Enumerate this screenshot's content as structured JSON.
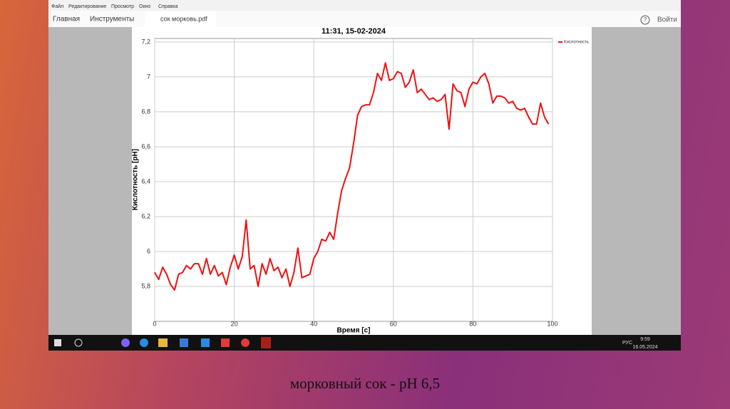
{
  "menu": [
    "Файл",
    "Редактирование",
    "Просмотр",
    "Окно",
    "Справка"
  ],
  "toolbar": {
    "home": "Главная",
    "tools": "Инструменты",
    "tab": "сок морковь.pdf",
    "help": "?",
    "login": "Войти"
  },
  "taskbar": {
    "lang": "РУС",
    "time": "9:59",
    "date": "16.05.2024"
  },
  "caption": "морковный сок - рН 6,5",
  "chart_data": {
    "type": "line",
    "title": "11:31, 15-02-2024",
    "x_label": "Время [с]",
    "y_label": "Кислотность [pH]",
    "x": [
      0,
      1,
      2,
      3,
      4,
      5,
      6,
      7,
      8,
      9,
      10,
      11,
      12,
      13,
      14,
      15,
      16,
      17,
      18,
      19,
      20,
      21,
      22,
      23,
      24,
      25,
      26,
      27,
      28,
      29,
      30,
      31,
      32,
      33,
      34,
      35,
      36,
      37,
      38,
      39,
      40,
      41,
      42,
      43,
      44,
      45,
      46,
      47,
      48,
      49,
      50,
      51,
      52,
      53,
      54,
      55,
      56,
      57,
      58,
      59,
      60,
      61,
      62,
      63,
      64,
      65,
      66,
      67,
      68,
      69,
      70,
      71,
      72,
      73,
      74,
      75,
      76,
      77,
      78,
      79,
      80,
      81,
      82,
      83,
      84,
      85,
      86,
      87,
      88,
      89,
      90,
      91,
      92,
      93,
      94,
      95,
      96,
      97,
      98,
      99
    ],
    "series": [
      {
        "name": "Кислотность",
        "color": "#ee1111",
        "values": [
          5.88,
          5.84,
          5.91,
          5.87,
          5.81,
          5.78,
          5.87,
          5.88,
          5.92,
          5.9,
          5.93,
          5.93,
          5.87,
          5.96,
          5.87,
          5.92,
          5.86,
          5.88,
          5.81,
          5.91,
          5.98,
          5.9,
          5.97,
          6.18,
          5.9,
          5.92,
          5.8,
          5.93,
          5.87,
          5.96,
          5.89,
          5.91,
          5.85,
          5.9,
          5.8,
          5.88,
          6.02,
          5.85,
          5.86,
          5.87,
          5.96,
          6.0,
          6.07,
          6.06,
          6.11,
          6.07,
          6.22,
          6.35,
          6.42,
          6.48,
          6.62,
          6.78,
          6.83,
          6.84,
          6.84,
          6.91,
          7.02,
          6.98,
          7.08,
          6.98,
          6.99,
          7.03,
          7.02,
          6.94,
          6.97,
          7.04,
          6.91,
          6.93,
          6.9,
          6.87,
          6.88,
          6.86,
          6.87,
          6.9,
          6.7,
          6.96,
          6.92,
          6.91,
          6.83,
          6.93,
          6.97,
          6.96,
          7.0,
          7.02,
          6.96,
          6.85,
          6.89,
          6.89,
          6.88,
          6.85,
          6.86,
          6.82,
          6.81,
          6.82,
          6.77,
          6.73,
          6.73,
          6.85,
          6.77,
          6.73
        ]
      }
    ],
    "xlim": [
      0,
      100
    ],
    "xticks": [
      0,
      20,
      40,
      60,
      80,
      100
    ],
    "ylim": [
      5.6,
      7.22
    ],
    "yticks": [
      {
        "value": 5.8,
        "label": "5,8"
      },
      6,
      {
        "value": 6.2,
        "label": "6,2"
      },
      {
        "value": 6.4,
        "label": "6,4"
      },
      {
        "value": 6.6,
        "label": "6,6"
      },
      {
        "value": 6.8,
        "label": "6,8"
      },
      7,
      {
        "value": 7.2,
        "label": "7,2"
      }
    ],
    "grid": true,
    "legend": "top-right"
  }
}
